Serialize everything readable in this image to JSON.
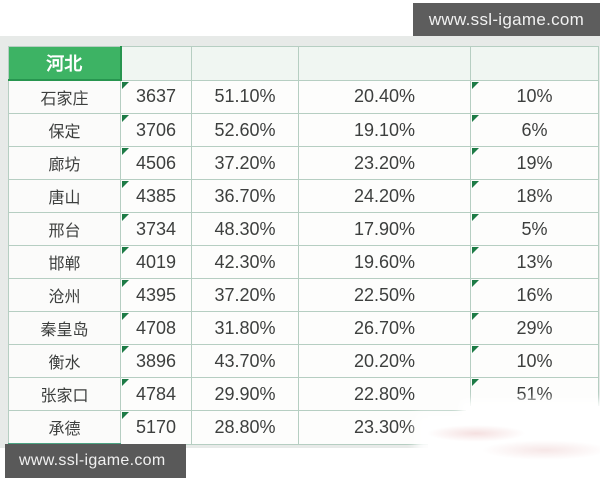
{
  "watermarks": {
    "top": "www.ssl-igame.com",
    "bottom": "www.ssl-igame.com"
  },
  "table": {
    "region_header": "河北",
    "empty_header_cells": [
      "",
      "",
      "",
      ""
    ],
    "column_names": [
      "city-cell",
      "value-cell",
      "percent1-cell",
      "percent2-cell",
      "percent3-cell"
    ],
    "rows": [
      [
        "石家庄",
        "3637",
        "51.10%",
        "20.40%",
        "10%"
      ],
      [
        "保定",
        "3706",
        "52.60%",
        "19.10%",
        "6%"
      ],
      [
        "廊坊",
        "4506",
        "37.20%",
        "23.20%",
        "19%"
      ],
      [
        "唐山",
        "4385",
        "36.70%",
        "24.20%",
        "18%"
      ],
      [
        "邢台",
        "3734",
        "48.30%",
        "17.90%",
        "5%"
      ],
      [
        "邯郸",
        "4019",
        "42.30%",
        "19.60%",
        "13%"
      ],
      [
        "沧州",
        "4395",
        "37.20%",
        "22.50%",
        "16%"
      ],
      [
        "秦皇岛",
        "4708",
        "31.80%",
        "26.70%",
        "29%"
      ],
      [
        "衡水",
        "3896",
        "43.70%",
        "20.20%",
        "10%"
      ],
      [
        "张家口",
        "4784",
        "29.90%",
        "22.80%",
        "51%"
      ],
      [
        "承德",
        "5170",
        "28.80%",
        "23.30%",
        ""
      ]
    ],
    "flag_columns": [
      1,
      4
    ]
  },
  "colors": {
    "header_green": "#3db364",
    "header_green_border": "#27954f",
    "flag_green": "#1d7b46",
    "grid_border": "#b6cec2",
    "watermark_bar": "#5d5d5d",
    "background_band": "#e7eae8"
  }
}
